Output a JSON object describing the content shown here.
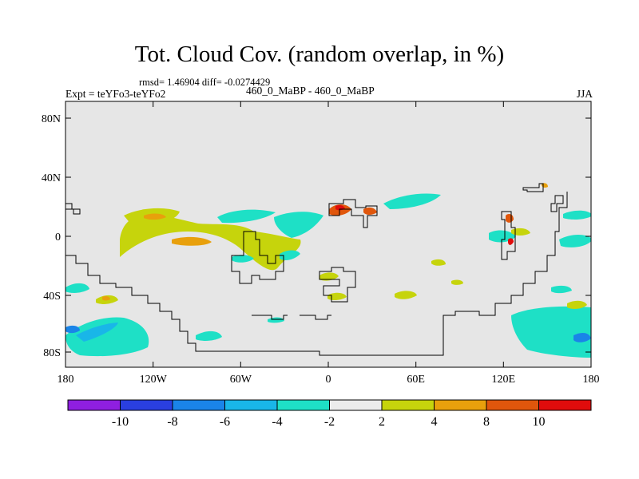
{
  "title": "Tot. Cloud Cov. (random overlap, in %)",
  "stats_text": "rmsd= 1.46904 diff= -0.0274429",
  "experiment_text": "Expt = teYFo3-teYFo2",
  "run_text": "460_0_MaBP - 460_0_MaBP",
  "season": "JJA",
  "map": {
    "type": "filled-contour difference map",
    "background_value_class": "-2 to 2",
    "x_ticks": [
      "180",
      "120W",
      "60W",
      "0",
      "60E",
      "120E",
      "180"
    ],
    "y_ticks": [
      "80N",
      "40N",
      "0",
      "40S",
      "80S"
    ]
  },
  "colorbar": {
    "levels": [
      "-10",
      "-8",
      "-6",
      "-4",
      "-2",
      "2",
      "4",
      "8",
      "10"
    ],
    "colors": [
      "#8f1fe0",
      "#2a3fe0",
      "#1a84e8",
      "#19b6e8",
      "#1ee0c6",
      "#ececec",
      "#c6d40c",
      "#e8a00c",
      "#e0560c",
      "#e00c0c"
    ]
  }
}
